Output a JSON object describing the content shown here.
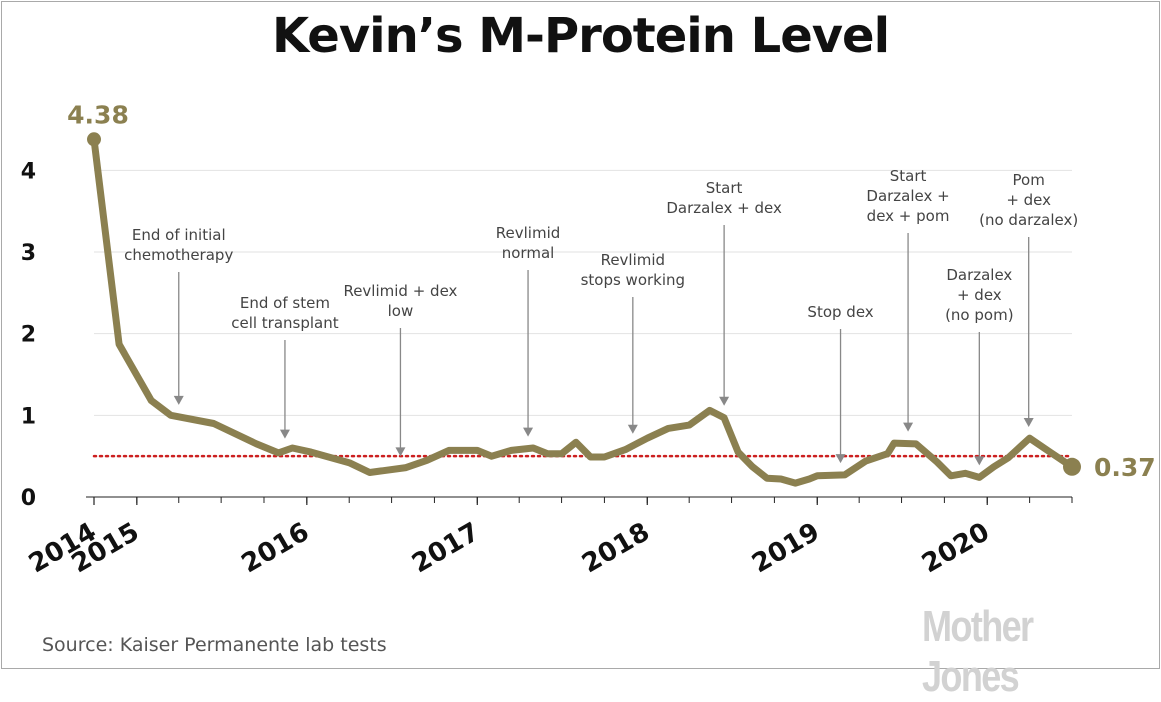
{
  "chart_data": {
    "type": "line",
    "title": "Kevin’s M-Protein Level",
    "xlabel": "",
    "ylabel": "",
    "ylim": [
      0,
      4.8
    ],
    "yticks": [
      0,
      1,
      2,
      3,
      4
    ],
    "xlim": [
      "2014-10-01",
      "2020-07-01"
    ],
    "xticks": [
      {
        "label": "2014",
        "date": "2014-10-01"
      },
      {
        "label": "2015",
        "date": "2015-01-01"
      },
      {
        "label": "2016",
        "date": "2016-01-01"
      },
      {
        "label": "2017",
        "date": "2017-01-01"
      },
      {
        "label": "2018",
        "date": "2018-01-01"
      },
      {
        "label": "2019",
        "date": "2019-01-01"
      },
      {
        "label": "2020",
        "date": "2020-01-01"
      }
    ],
    "grid": true,
    "line_color": "#8b8050",
    "reference_line": {
      "value": 0.5,
      "color": "#cc1f1f",
      "style": "dotted"
    },
    "series": [
      {
        "points": [
          [
            "2014-10-01",
            4.38
          ],
          [
            "2014-11-24",
            1.87
          ],
          [
            "2015-02-01",
            1.18
          ],
          [
            "2015-03-15",
            1.0
          ],
          [
            "2015-06-15",
            0.9
          ],
          [
            "2015-09-15",
            0.65
          ],
          [
            "2015-11-01",
            0.54
          ],
          [
            "2015-12-01",
            0.6
          ],
          [
            "2016-01-10",
            0.55
          ],
          [
            "2016-04-01",
            0.42
          ],
          [
            "2016-05-15",
            0.3
          ],
          [
            "2016-08-01",
            0.36
          ],
          [
            "2016-09-15",
            0.45
          ],
          [
            "2016-11-01",
            0.57
          ],
          [
            "2017-01-01",
            0.57
          ],
          [
            "2017-02-01",
            0.5
          ],
          [
            "2017-03-15",
            0.57
          ],
          [
            "2017-05-01",
            0.6
          ],
          [
            "2017-06-01",
            0.53
          ],
          [
            "2017-07-01",
            0.53
          ],
          [
            "2017-08-01",
            0.67
          ],
          [
            "2017-09-01",
            0.49
          ],
          [
            "2017-10-01",
            0.49
          ],
          [
            "2017-11-15",
            0.58
          ],
          [
            "2018-01-01",
            0.72
          ],
          [
            "2018-02-15",
            0.84
          ],
          [
            "2018-04-01",
            0.88
          ],
          [
            "2018-05-15",
            1.06
          ],
          [
            "2018-06-15",
            0.97
          ],
          [
            "2018-07-15",
            0.55
          ],
          [
            "2018-08-15",
            0.37
          ],
          [
            "2018-09-15",
            0.23
          ],
          [
            "2018-10-15",
            0.22
          ],
          [
            "2018-11-15",
            0.17
          ],
          [
            "2018-12-15",
            0.22
          ],
          [
            "2019-01-01",
            0.26
          ],
          [
            "2019-03-01",
            0.27
          ],
          [
            "2019-04-15",
            0.44
          ],
          [
            "2019-06-01",
            0.53
          ],
          [
            "2019-06-15",
            0.66
          ],
          [
            "2019-08-01",
            0.65
          ],
          [
            "2019-09-15",
            0.43
          ],
          [
            "2019-10-15",
            0.26
          ],
          [
            "2019-11-15",
            0.29
          ],
          [
            "2019-12-15",
            0.24
          ],
          [
            "2020-01-15",
            0.37
          ],
          [
            "2020-02-15",
            0.48
          ],
          [
            "2020-04-01",
            0.72
          ],
          [
            "2020-05-15",
            0.55
          ],
          [
            "2020-07-01",
            0.37
          ]
        ]
      }
    ],
    "point_labels": [
      {
        "text": "4.38",
        "at": "start"
      },
      {
        "text": "0.37",
        "at": "end"
      }
    ],
    "annotations": [
      {
        "lines": [
          "End of initial",
          "chemotherapy"
        ],
        "date": "2015-04-01"
      },
      {
        "lines": [
          "End of stem",
          "cell transplant"
        ],
        "date": "2015-11-15"
      },
      {
        "lines": [
          "Revlimid + dex",
          "low"
        ],
        "date": "2016-07-20"
      },
      {
        "lines": [
          "Revlimid",
          "normal"
        ],
        "date": "2017-04-20"
      },
      {
        "lines": [
          "Revlimid",
          "stops working"
        ],
        "date": "2017-12-01"
      },
      {
        "lines": [
          "Start",
          "Darzalex + dex"
        ],
        "date": "2018-06-15"
      },
      {
        "lines": [
          "Stop dex"
        ],
        "date": "2019-02-20"
      },
      {
        "lines": [
          "Start",
          "Darzalex +",
          "dex + pom"
        ],
        "date": "2019-07-15"
      },
      {
        "lines": [
          "Darzalex",
          "+ dex",
          "(no pom)"
        ],
        "date": "2019-12-15"
      },
      {
        "lines": [
          "Pom",
          "+ dex",
          "(no darzalex)"
        ],
        "date": "2020-03-30"
      }
    ]
  },
  "footer": {
    "source": "Source: Kaiser Permanente lab tests",
    "brand": "Mother Jones"
  }
}
